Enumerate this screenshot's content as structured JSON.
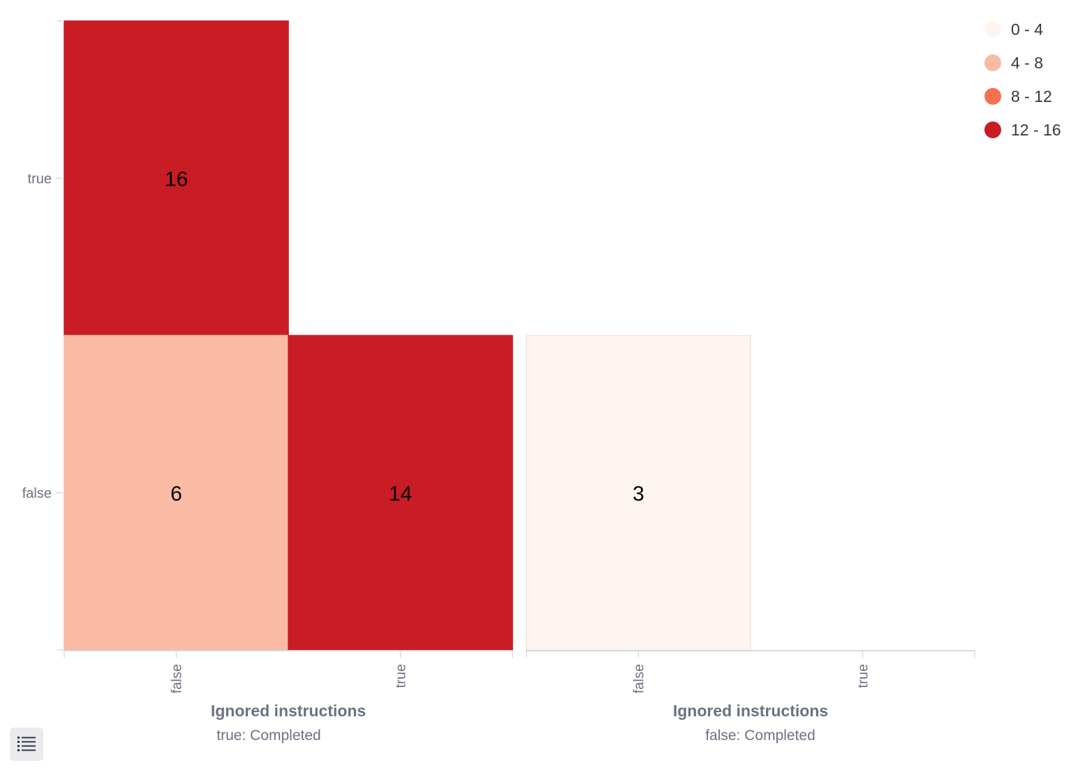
{
  "chart_data": {
    "type": "heatmap",
    "y_categories": [
      "true",
      "false"
    ],
    "x_categories": [
      "false",
      "true"
    ],
    "xlabel": "Ignored instructions",
    "facets": [
      {
        "label": "true: Completed",
        "cells": [
          {
            "x": "false",
            "y": "true",
            "value": 16
          },
          {
            "x": "false",
            "y": "false",
            "value": 6
          },
          {
            "x": "true",
            "y": "false",
            "value": 14
          }
        ]
      },
      {
        "label": "false: Completed",
        "cells": [
          {
            "x": "false",
            "y": "false",
            "value": 3
          }
        ]
      }
    ],
    "legend": {
      "placement": "top-right",
      "bins": [
        {
          "label": "0 - 4",
          "color": "#fff5f0"
        },
        {
          "label": "4 - 8",
          "color": "#f9bba3"
        },
        {
          "label": "8 - 12",
          "color": "#f6714f"
        },
        {
          "label": "12 - 16",
          "color": "#c91c24"
        }
      ]
    },
    "grid": false
  },
  "ui": {
    "legend_toggle_icon": "list-icon"
  }
}
